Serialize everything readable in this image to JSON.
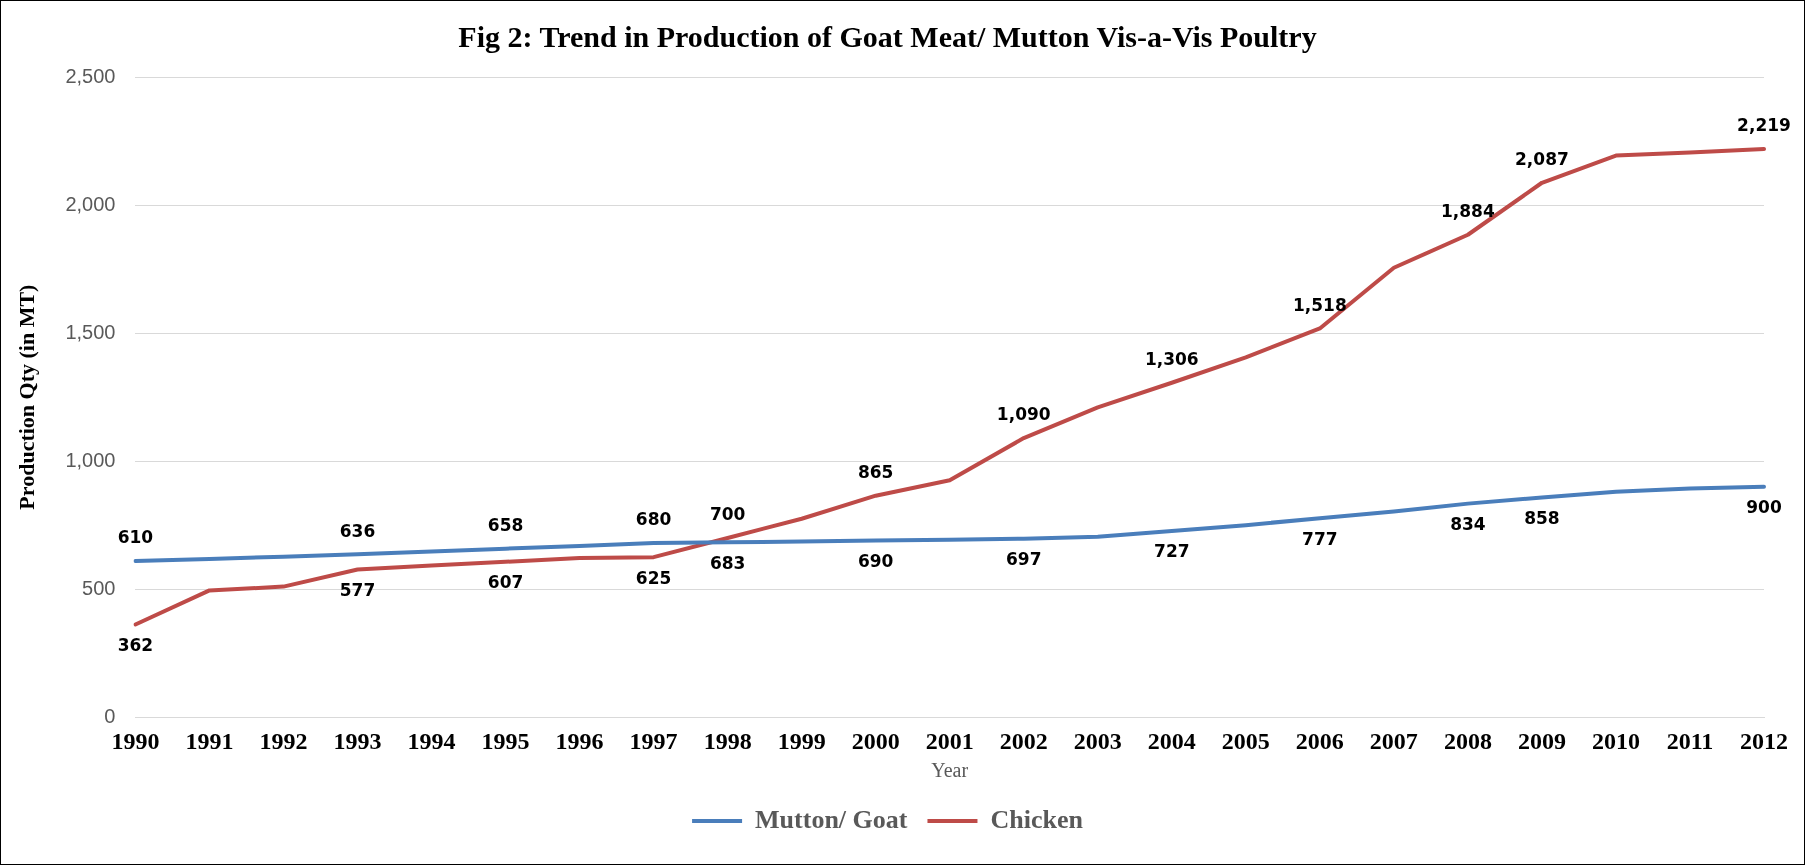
{
  "chart_data": {
    "type": "line",
    "title": "Fig 2: Trend in Production of Goat Meat/ Mutton Vis-a-Vis Poultry",
    "xlabel": "Year",
    "ylabel": "Production Qty (in MT)",
    "categories": [
      "1990",
      "1991",
      "1992",
      "1993",
      "1994",
      "1995",
      "1996",
      "1997",
      "1998",
      "1999",
      "2000",
      "2001",
      "2002",
      "2003",
      "2004",
      "2005",
      "2006",
      "2007",
      "2008",
      "2009",
      "2010",
      "2011",
      "2012"
    ],
    "series": [
      {
        "name": "Mutton/ Goat",
        "color": "#4a7ebb",
        "values": [
          610,
          618,
          627,
          636,
          647,
          658,
          669,
          680,
          683,
          686,
          690,
          693,
          697,
          705,
          727,
          750,
          777,
          803,
          834,
          858,
          880,
          893,
          900
        ],
        "value_labels": [
          "610",
          null,
          null,
          "636",
          null,
          "658",
          null,
          "680",
          "683",
          null,
          "690",
          null,
          "697",
          null,
          "727",
          null,
          "777",
          null,
          "834",
          "858",
          null,
          null,
          "900"
        ]
      },
      {
        "name": "Chicken",
        "color": "#be4b48",
        "values": [
          362,
          495,
          510,
          577,
          592,
          607,
          622,
          625,
          700,
          775,
          865,
          925,
          1090,
          1210,
          1306,
          1405,
          1518,
          1755,
          1884,
          2087,
          2193,
          2205,
          2219
        ],
        "value_labels": [
          "362",
          null,
          null,
          "577",
          null,
          "607",
          null,
          "625",
          "700",
          null,
          "865",
          null,
          "1,090",
          null,
          "1,306",
          null,
          "1,518",
          null,
          "1,884",
          "2,087",
          null,
          null,
          "2,219"
        ]
      }
    ],
    "ylim": [
      0,
      2500
    ],
    "yticks": [
      {
        "value": 0,
        "label": "0"
      },
      {
        "value": 500,
        "label": "500"
      },
      {
        "value": 1000,
        "label": "1,000"
      },
      {
        "value": 1500,
        "label": "1,500"
      },
      {
        "value": 2000,
        "label": "2,000"
      },
      {
        "value": 2500,
        "label": "2,500"
      }
    ],
    "grid": "y",
    "legend": "bottom",
    "marker": "none",
    "line_style": "solid"
  }
}
